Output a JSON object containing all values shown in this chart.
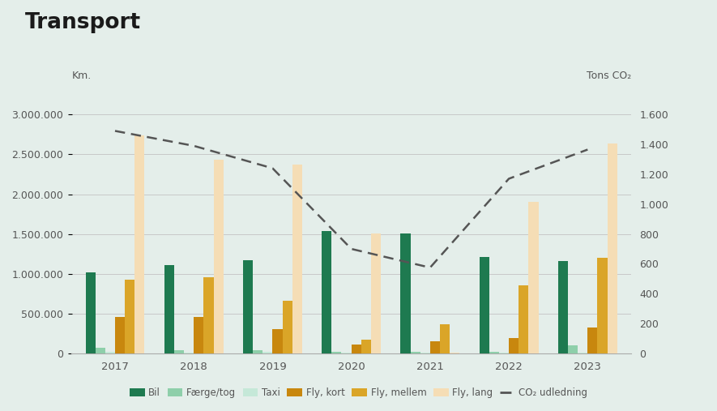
{
  "title": "Transport",
  "years": [
    2017,
    2018,
    2019,
    2020,
    2021,
    2022,
    2023
  ],
  "bil": [
    1020000,
    1110000,
    1170000,
    1540000,
    1510000,
    1210000,
    1165000
  ],
  "faerge_tog": [
    70000,
    45000,
    45000,
    25000,
    25000,
    25000,
    105000
  ],
  "taxi": [
    25000,
    15000,
    20000,
    15000,
    10000,
    15000,
    15000
  ],
  "fly_kort": [
    455000,
    460000,
    305000,
    110000,
    150000,
    195000,
    330000
  ],
  "fly_mellem": [
    930000,
    960000,
    660000,
    170000,
    370000,
    860000,
    1200000
  ],
  "fly_lang": [
    2740000,
    2430000,
    2370000,
    1510000,
    10000,
    1900000,
    2640000
  ],
  "co2": [
    1490,
    1390,
    1240,
    700,
    575,
    1170,
    1365
  ],
  "colors": {
    "bil": "#1e7a50",
    "faerge_tog": "#8ecfaa",
    "taxi": "#c5e8d8",
    "fly_kort": "#c8870e",
    "fly_mellem": "#daa528",
    "fly_lang": "#f5ddb5",
    "co2_line": "#555555"
  },
  "background_color": "#e4eeea",
  "left_ylabel": "Km.",
  "right_ylabel": "Tons CO₂",
  "ylim_left": [
    0,
    3200000
  ],
  "ylim_right": [
    0,
    1706
  ],
  "left_ticks": [
    0,
    500000,
    1000000,
    1500000,
    2000000,
    2500000,
    3000000
  ],
  "right_ticks": [
    0,
    200,
    400,
    600,
    800,
    1000,
    1200,
    1400,
    1600
  ],
  "legend_labels": [
    "Bil",
    "Færge/tog",
    "Taxi",
    "Fly, kort",
    "Fly, mellem",
    "Fly, lang",
    "CO₂ udledning"
  ]
}
